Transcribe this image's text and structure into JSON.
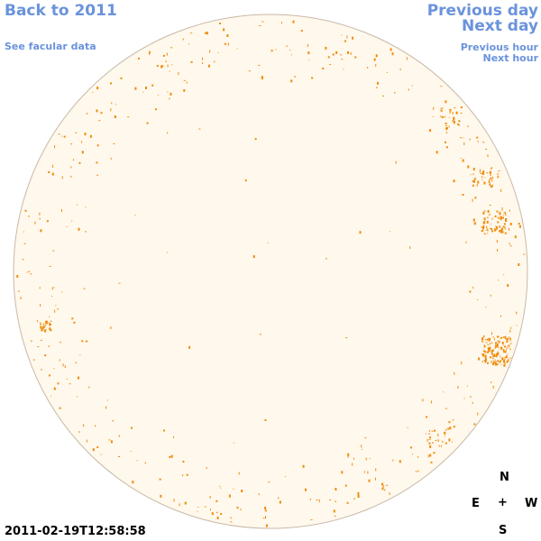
{
  "nav": {
    "back_label": "Back to 2011",
    "facular_label": "See facular data",
    "prev_day_label": "Previous day",
    "next_day_label": "Next day",
    "prev_hour_label": "Previous hour",
    "next_hour_label": "Next hour"
  },
  "timestamp": "2011-02-19T12:58:58",
  "compass": {
    "north": "N",
    "east": "E",
    "center": "+",
    "west": "W",
    "south": "S"
  },
  "colors": {
    "link": "#6a93dc",
    "disk_fill": "#fff8ec",
    "disk_border": "#c8b9a6",
    "facula": "#ef8c0c"
  }
}
